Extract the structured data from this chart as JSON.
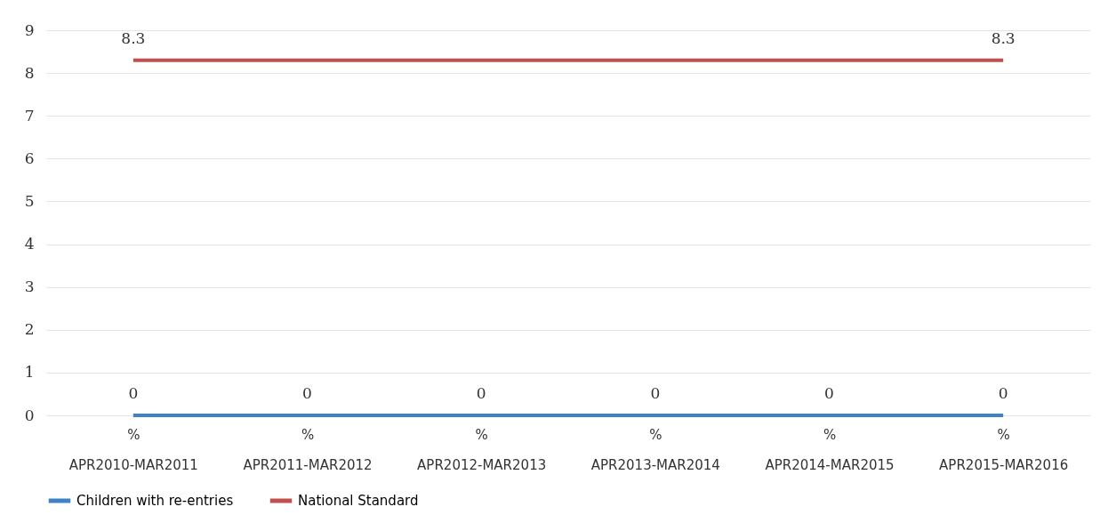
{
  "chart_data": {
    "type": "line",
    "categories": [
      "%\nAPR2010-MAR2011",
      "%\nAPR2011-MAR2012",
      "%\nAPR2012-MAR2013",
      "%\nAPR2013-MAR2014",
      "%\nAPR2014-MAR2015",
      "%\nAPR2015-MAR2016"
    ],
    "series": [
      {
        "name": "Children with re-entries",
        "color": "#3f83c6",
        "values": [
          0,
          0,
          0,
          0,
          0,
          0
        ],
        "value_labels": [
          "0",
          "0",
          "0",
          "0",
          "0",
          "0"
        ]
      },
      {
        "name": "National Standard",
        "color": "#c0504d",
        "values": [
          8.3,
          8.3,
          8.3,
          8.3,
          8.3,
          8.3
        ],
        "value_labels": [
          "8.3",
          null,
          null,
          null,
          null,
          "8.3"
        ]
      }
    ],
    "ylim": [
      0,
      9
    ],
    "yticks": [
      0,
      1,
      2,
      3,
      4,
      5,
      6,
      7,
      8,
      9
    ],
    "grid": "y",
    "legend": "bottom",
    "marker": "none",
    "line_style": "solid"
  }
}
